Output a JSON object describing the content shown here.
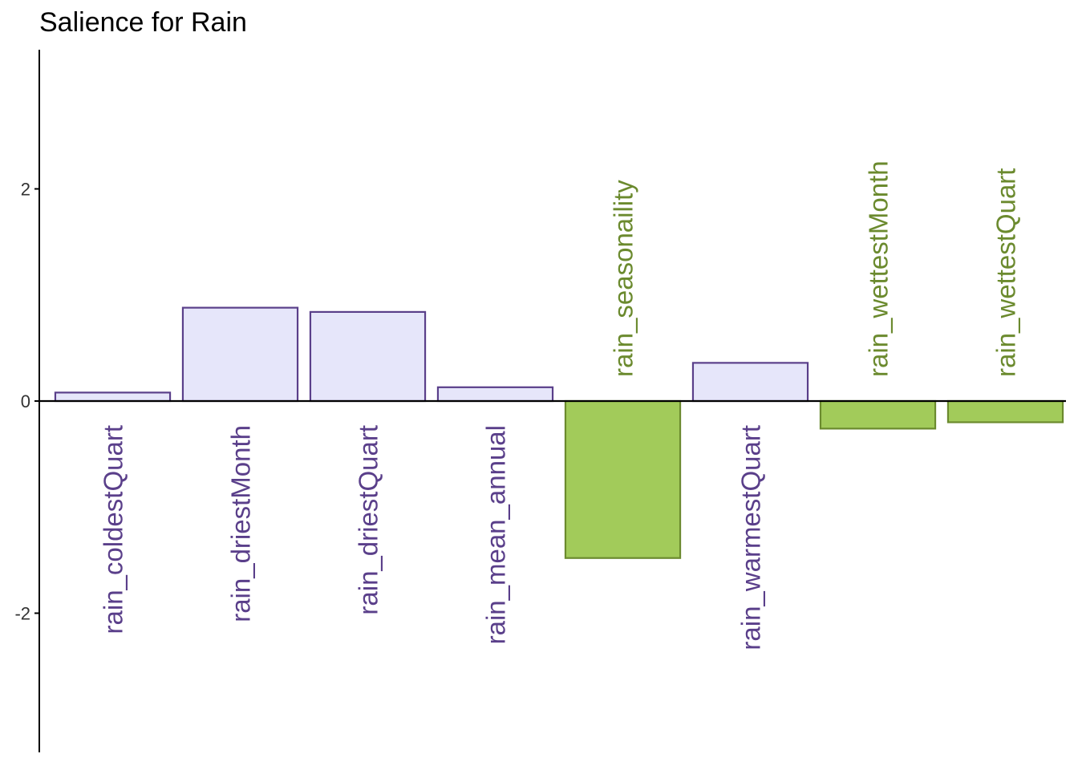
{
  "chart_data": {
    "type": "bar",
    "title": "Salience for Rain",
    "xlabel": "",
    "ylabel": "",
    "categories": [
      "rain_coldestQuart",
      "rain_driestMonth",
      "rain_driestQuart",
      "rain_mean_annual",
      "rain_seasonaility",
      "rain_warmestQuart",
      "rain_wettestMonth",
      "rain_wettestQuart"
    ],
    "values": [
      0.08,
      0.88,
      0.84,
      0.13,
      -1.48,
      0.36,
      -0.26,
      -0.2
    ],
    "ylim": [
      -3.3,
      3.3
    ],
    "yticks": [
      -2,
      0,
      2
    ],
    "ytick_labels": [
      "-2",
      "0",
      "2"
    ],
    "grid": false,
    "legend": "none",
    "colors": {
      "positive_fill": "#e6e6fa",
      "positive_stroke": "#5a3f8a",
      "positive_label": "#5a3f8a",
      "negative_fill": "#a2cb5a",
      "negative_stroke": "#6b8a2e",
      "negative_label": "#6b8a2e",
      "axis": "#000000",
      "tick_label": "#333333"
    }
  }
}
